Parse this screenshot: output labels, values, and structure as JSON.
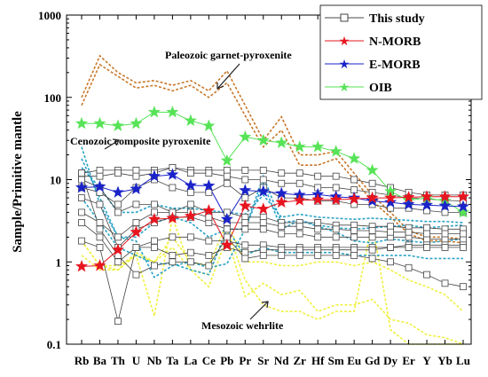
{
  "chart_data": {
    "type": "line",
    "ylabel": "Sample/Primitive mantle",
    "xlabel": "",
    "yscale": "log",
    "ylim": [
      0.1,
      1000
    ],
    "ytick_labels": [
      "0.1",
      "1",
      "10",
      "100",
      "1000"
    ],
    "categories": [
      "Rb",
      "Ba",
      "Th",
      "U",
      "Nb",
      "Ta",
      "La",
      "Ce",
      "Pb",
      "Pr",
      "Sr",
      "Nd",
      "Zr",
      "Hf",
      "Sm",
      "Eu",
      "Gd",
      "Dy",
      "Er",
      "Y",
      "Yb",
      "Lu"
    ],
    "category_labels": [
      "Rb",
      "Ba",
      "Th",
      "U",
      "Nb",
      "Ta",
      "La",
      "Ce",
      "Pb",
      "Pr",
      "Sr",
      "Nd",
      "Zr",
      "Hf",
      "Sm",
      "Eu",
      "Gd",
      "Dy",
      "Er",
      "Y",
      "Yb",
      "Lu"
    ],
    "legend": [
      "This study",
      "N-MORB",
      "E-MORB",
      "OIB"
    ],
    "legend_position": "top-right",
    "annotations": [
      "Paleozoic garnet-pyroxenite",
      "Cenozoic composite pyroxenite",
      "Mesozoic wehrlite"
    ],
    "colors": {
      "this_study": "#444444",
      "nmorb": "#e8141e",
      "emorb": "#1a23c9",
      "oib": "#57e357",
      "paleozoic": "#c8782a",
      "cenozoic": "#2aa3c6",
      "mesozoic": "#f0f040"
    },
    "series": [
      {
        "name": "This study",
        "group": "this_study",
        "values": [
          12,
          13,
          13,
          13,
          13,
          14,
          13,
          13,
          13,
          13,
          13,
          12,
          12,
          11,
          11,
          10,
          9,
          8,
          7,
          6.5,
          6.5,
          6.5
        ]
      },
      {
        "name": "This study",
        "group": "this_study",
        "values": [
          11,
          11,
          12,
          11,
          12,
          14,
          12,
          12,
          11,
          10,
          10,
          9,
          9,
          8,
          8,
          7.5,
          7,
          6.5,
          6,
          5.8,
          5.6,
          5.5
        ]
      },
      {
        "name": "This study",
        "group": "this_study",
        "values": [
          10,
          8,
          4,
          5,
          5,
          4,
          5,
          4,
          4,
          3.5,
          3.5,
          3,
          3,
          3,
          2.8,
          2.8,
          2.7,
          2.7,
          2.6,
          2.6,
          2.5,
          2.5
        ]
      },
      {
        "name": "This study",
        "group": "this_study",
        "values": [
          8,
          7,
          5,
          8,
          10,
          8,
          7,
          7,
          9,
          6,
          8,
          6,
          6,
          5.5,
          5.5,
          5,
          5,
          4.5,
          4.5,
          4.2,
          4,
          4
        ]
      },
      {
        "name": "This study",
        "group": "this_study",
        "values": [
          6,
          5,
          1.5,
          2.5,
          3,
          3.5,
          3.5,
          3,
          2.5,
          2.5,
          2.5,
          2.2,
          2.2,
          2,
          2,
          2,
          2,
          2,
          2,
          1.9,
          1.9,
          1.9
        ]
      },
      {
        "name": "This study",
        "group": "this_study",
        "values": [
          4,
          3,
          2,
          3,
          4,
          4,
          4,
          3.5,
          3,
          3,
          3,
          2.7,
          2.7,
          2.5,
          2.5,
          2.4,
          2.4,
          2.3,
          2.3,
          2.2,
          2.2,
          2.2
        ]
      },
      {
        "name": "This study",
        "group": "this_study",
        "values": [
          3,
          2,
          1,
          1.5,
          1.8,
          2,
          2,
          1.8,
          1.8,
          1.6,
          1.6,
          1.5,
          1.5,
          1.5,
          1.5,
          1.5,
          1.5,
          1.5,
          1.6,
          1.6,
          1.6,
          1.6
        ]
      },
      {
        "name": "This study",
        "group": "this_study",
        "values": [
          1.8,
          1.5,
          0.19,
          1.5,
          1.5,
          1.2,
          1.3,
          1.2,
          1.5,
          1.3,
          1.4,
          1.4,
          1.4,
          1.4,
          1.4,
          1.4,
          1.4,
          1.5,
          1.5,
          1.5,
          1.5,
          1.5
        ]
      },
      {
        "name": "This study",
        "group": "this_study",
        "values": [
          12,
          2.5,
          1.2,
          0.7,
          0.9,
          1,
          1,
          0.9,
          2,
          1.1,
          1.2,
          1.2,
          1.2,
          1.2,
          1.2,
          1.2,
          1.1,
          1,
          0.85,
          0.7,
          0.55,
          0.5
        ]
      },
      {
        "name": "N-MORB",
        "group": "nmorb",
        "values": [
          0.88,
          0.9,
          1.4,
          2.3,
          3.3,
          3.4,
          3.6,
          4.2,
          1.6,
          4.8,
          4.4,
          5.3,
          5.6,
          5.7,
          5.7,
          5.8,
          6,
          6,
          6.1,
          6.2,
          6.2,
          6.2
        ]
      },
      {
        "name": "E-MORB",
        "group": "emorb",
        "values": [
          8,
          8.2,
          7,
          7.7,
          11,
          11.5,
          8.5,
          8.4,
          3.3,
          7.4,
          7.2,
          6.8,
          6.5,
          6.6,
          6.2,
          6,
          5.5,
          5.3,
          5,
          4.9,
          4.8,
          4.7
        ]
      },
      {
        "name": "OIB",
        "group": "oib",
        "values": [
          48,
          48,
          45,
          48,
          66,
          66,
          52,
          45,
          17,
          33,
          30,
          28,
          25,
          25,
          22,
          18,
          13,
          7.2,
          5.6,
          6,
          5.5,
          4
        ]
      },
      {
        "name": "Paleozoic garnet-pyroxenite",
        "group": "paleozoic",
        "values": [
          100,
          320,
          200,
          150,
          160,
          140,
          160,
          120,
          210,
          80,
          30,
          58,
          20,
          20,
          22,
          12,
          6.5,
          4,
          2.4,
          2,
          2,
          1.9
        ]
      },
      {
        "name": "Paleozoic garnet-pyroxenite",
        "group": "paleozoic",
        "values": [
          80,
          250,
          180,
          130,
          140,
          120,
          140,
          100,
          150,
          60,
          25,
          40,
          15,
          15,
          18,
          10,
          5.5,
          3.5,
          2.2,
          1.8,
          1.8,
          1.7
        ]
      },
      {
        "name": "Cenozoic composite pyroxenite",
        "group": "cenozoic",
        "values": [
          25,
          5,
          2,
          1.8,
          0.65,
          0.9,
          1,
          0.85,
          0.95,
          2.5,
          11,
          3,
          3.2,
          2.8,
          2.6,
          2.5,
          2.6,
          2.7,
          2.8,
          2.6,
          2.7,
          2.8
        ]
      },
      {
        "name": "Cenozoic composite pyroxenite",
        "group": "cenozoic",
        "values": [
          18,
          6,
          2,
          2,
          3,
          3.5,
          3,
          2,
          2.5,
          2.5,
          9,
          2.5,
          3.2,
          2.7,
          2.3,
          1.8,
          1.7,
          1.9,
          1.8,
          1.7,
          1.8,
          1.9
        ]
      },
      {
        "name": "Cenozoic composite pyroxenite",
        "group": "cenozoic",
        "values": [
          14,
          8,
          4,
          4,
          5,
          4.5,
          4.5,
          4.2,
          4,
          3.8,
          6.5,
          3.5,
          3.8,
          3.5,
          3.4,
          3.3,
          3.4,
          3.3,
          3.2,
          3.1,
          3.1,
          3
        ]
      },
      {
        "name": "Cenozoic composite pyroxenite",
        "group": "cenozoic",
        "values": [
          6,
          3,
          1.5,
          1.2,
          0.95,
          0.95,
          0.8,
          0.7,
          2.5,
          1.2,
          1.5,
          1.3,
          1.3,
          1.3,
          1.3,
          1.2,
          1.2,
          1.2,
          1.2,
          1.1,
          1.1,
          1.1
        ]
      },
      {
        "name": "Mesozoic wehrlite",
        "group": "mesozoic",
        "values": [
          1.8,
          0.9,
          0.9,
          1.2,
          1,
          2,
          1,
          0.9,
          3,
          1,
          1,
          0.9,
          0.9,
          1,
          1,
          0.9,
          1,
          0.8,
          0.6,
          0.5,
          0.4,
          0.25
        ]
      },
      {
        "name": "Mesozoic wehrlite",
        "group": "mesozoic",
        "values": [
          1.8,
          0.9,
          0.8,
          1.2,
          0.22,
          3.5,
          0.8,
          0.5,
          2,
          0.38,
          0.55,
          0.4,
          0.45,
          0.25,
          0.3,
          0.3,
          0.35,
          0.2,
          0.18,
          0.13,
          0.12,
          0.1
        ]
      },
      {
        "name": "Mesozoic wehrlite",
        "group": "mesozoic",
        "values": [
          1.2,
          0.8,
          0.8,
          1.3,
          1,
          1.5,
          0.8,
          0.7,
          2.5,
          0.6,
          0.3,
          0.25,
          0.25,
          0.2,
          0.25,
          0.25,
          3,
          0.15,
          0.1,
          0.1,
          0.1,
          0.1
        ]
      }
    ]
  }
}
